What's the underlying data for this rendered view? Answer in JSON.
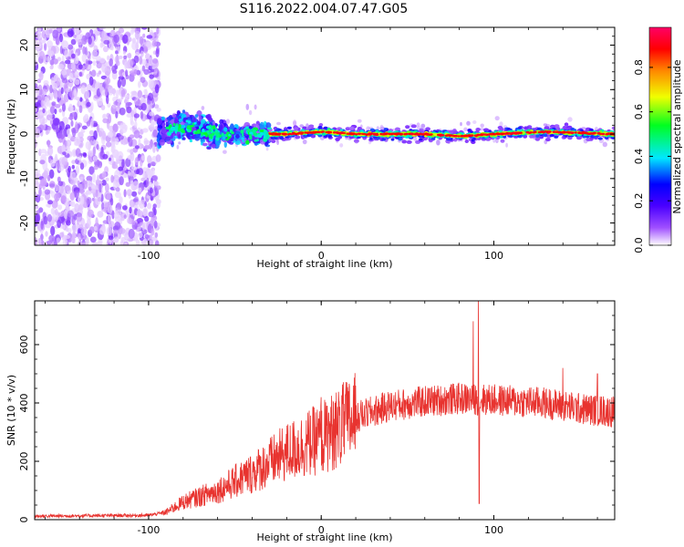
{
  "figure": {
    "title": "S116.2022.004.07.47.G05"
  },
  "chart_data": [
    {
      "type": "heatmap",
      "title": "",
      "xlabel": "Height of straight line (km)",
      "ylabel": "Frequency (Hz)",
      "xlim": [
        -166,
        170
      ],
      "ylim": [
        -25,
        24
      ],
      "xticks": [
        -100,
        0,
        100
      ],
      "yticks": [
        -20,
        -10,
        0,
        10,
        20
      ],
      "grid": false,
      "colormap": "rainbow (white-purple-blue-cyan-green-yellow-orange-red-magenta)",
      "colorbar": {
        "label": "Normalized spectral amplitude",
        "ticks": [
          0.0,
          0.2,
          0.4,
          0.6,
          0.8
        ],
        "range": [
          0,
          0.98
        ]
      },
      "ridge": {
        "description_points": [
          {
            "x": -94,
            "y": 0.5
          },
          {
            "x": -80,
            "y": 2
          },
          {
            "x": -60,
            "y": 0
          },
          {
            "x": -40,
            "y": 0
          },
          {
            "x": -20,
            "y": 0
          },
          {
            "x": 0,
            "y": 0.5
          },
          {
            "x": 20,
            "y": 0
          },
          {
            "x": 60,
            "y": 0
          },
          {
            "x": 80,
            "y": -0.5
          },
          {
            "x": 100,
            "y": 0
          },
          {
            "x": 130,
            "y": 0.5
          },
          {
            "x": 170,
            "y": 0
          }
        ]
      }
    },
    {
      "type": "line",
      "title": "",
      "xlabel": "Height of straight line (km)",
      "ylabel": "SNR (10 * v/v)",
      "xlim": [
        -166,
        170
      ],
      "ylim": [
        0,
        750
      ],
      "xticks": [
        -100,
        0,
        100
      ],
      "yticks": [
        0,
        200,
        400,
        600
      ],
      "grid": false,
      "series": [
        {
          "color": "#e8332f",
          "trend": [
            {
              "x": -166,
              "y": 12
            },
            {
              "x": -100,
              "y": 15
            },
            {
              "x": -90,
              "y": 25
            },
            {
              "x": -80,
              "y": 60
            },
            {
              "x": -60,
              "y": 100
            },
            {
              "x": -40,
              "y": 160
            },
            {
              "x": -20,
              "y": 230
            },
            {
              "x": 0,
              "y": 280
            },
            {
              "x": 20,
              "y": 350
            },
            {
              "x": 40,
              "y": 390
            },
            {
              "x": 60,
              "y": 405
            },
            {
              "x": 80,
              "y": 415
            },
            {
              "x": 100,
              "y": 410
            },
            {
              "x": 130,
              "y": 400
            },
            {
              "x": 150,
              "y": 380
            },
            {
              "x": 170,
              "y": 370
            }
          ],
          "spikes": [
            {
              "x": 91,
              "y": 760
            },
            {
              "x": 91.5,
              "y": 55
            },
            {
              "x": 88,
              "y": 680
            },
            {
              "x": 0,
              "y": 420
            },
            {
              "x": 8,
              "y": 400
            },
            {
              "x": 140,
              "y": 520
            },
            {
              "x": 160,
              "y": 500
            }
          ]
        }
      ]
    }
  ]
}
